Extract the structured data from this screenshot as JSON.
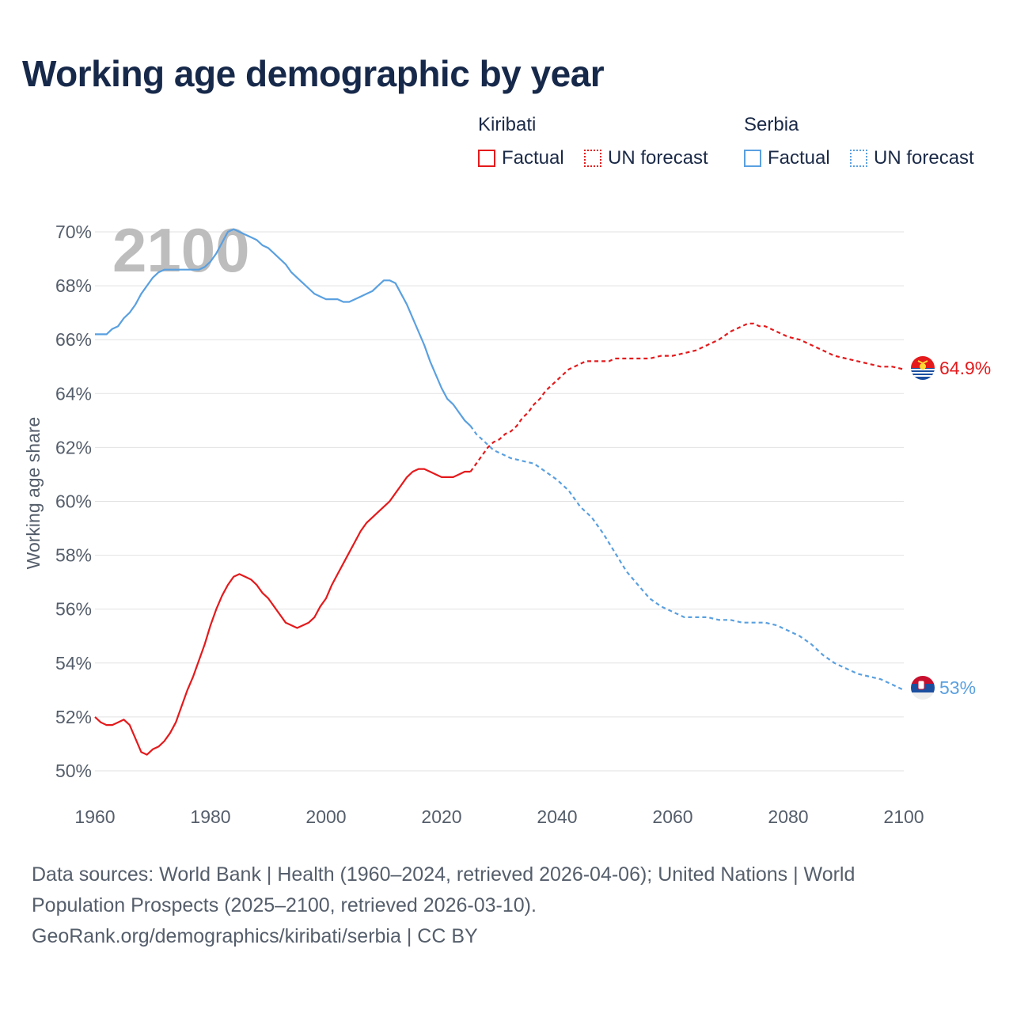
{
  "title": "Working age demographic by year",
  "legend": {
    "groups": [
      {
        "name": "Kiribati",
        "color": "#e41a1c",
        "items": [
          "Factual",
          "UN forecast"
        ]
      },
      {
        "name": "Serbia",
        "color": "#5aa0e0",
        "items": [
          "Factual",
          "UN forecast"
        ]
      }
    ]
  },
  "year_watermark": "2100",
  "footer": {
    "line1": "Data sources: World Bank | Health (1960–2024, retrieved 2026-04-06); United Nations | World",
    "line2": "Population Prospects (2025–2100, retrieved 2026-03-10).",
    "line3": "GeoRank.org/demographics/kiribati/serbia | CC BY"
  },
  "chart_data": {
    "type": "line",
    "title": "Working age demographic by year",
    "xlabel": "",
    "ylabel": "Working age share",
    "xlim": [
      1960,
      2100
    ],
    "ylim": [
      50,
      70
    ],
    "x_ticks": [
      1960,
      1980,
      2000,
      2020,
      2040,
      2060,
      2080,
      2100
    ],
    "y_ticks": [
      "50%",
      "52%",
      "54%",
      "56%",
      "58%",
      "60%",
      "62%",
      "64%",
      "66%",
      "68%",
      "70%"
    ],
    "grid": true,
    "legend": "top-right",
    "factual_end_year": 2025,
    "series": [
      {
        "name": "Kiribati",
        "color": "#e41a1c",
        "end_label": "64.9%",
        "x": [
          1960,
          1961,
          1962,
          1963,
          1964,
          1965,
          1966,
          1967,
          1968,
          1969,
          1970,
          1971,
          1972,
          1973,
          1974,
          1975,
          1976,
          1977,
          1978,
          1979,
          1980,
          1981,
          1982,
          1983,
          1984,
          1985,
          1986,
          1987,
          1988,
          1989,
          1990,
          1991,
          1992,
          1993,
          1994,
          1995,
          1996,
          1997,
          1998,
          1999,
          2000,
          2001,
          2002,
          2003,
          2004,
          2005,
          2006,
          2007,
          2008,
          2009,
          2010,
          2011,
          2012,
          2013,
          2014,
          2015,
          2016,
          2017,
          2018,
          2019,
          2020,
          2021,
          2022,
          2023,
          2024,
          2025,
          2026,
          2027,
          2028,
          2029,
          2030,
          2031,
          2032,
          2033,
          2034,
          2035,
          2036,
          2037,
          2038,
          2039,
          2040,
          2041,
          2042,
          2043,
          2044,
          2045,
          2046,
          2047,
          2048,
          2049,
          2050,
          2052,
          2054,
          2056,
          2058,
          2060,
          2062,
          2064,
          2066,
          2068,
          2070,
          2072,
          2073,
          2074,
          2075,
          2076,
          2078,
          2080,
          2082,
          2084,
          2086,
          2088,
          2090,
          2092,
          2094,
          2096,
          2098,
          2100
        ],
        "values": [
          52.0,
          51.8,
          51.7,
          51.7,
          51.8,
          51.9,
          51.7,
          51.2,
          50.7,
          50.6,
          50.8,
          50.9,
          51.1,
          51.4,
          51.8,
          52.4,
          53.0,
          53.5,
          54.1,
          54.7,
          55.4,
          56.0,
          56.5,
          56.9,
          57.2,
          57.3,
          57.2,
          57.1,
          56.9,
          56.6,
          56.4,
          56.1,
          55.8,
          55.5,
          55.4,
          55.3,
          55.4,
          55.5,
          55.7,
          56.1,
          56.4,
          56.9,
          57.3,
          57.7,
          58.1,
          58.5,
          58.9,
          59.2,
          59.4,
          59.6,
          59.8,
          60.0,
          60.3,
          60.6,
          60.9,
          61.1,
          61.2,
          61.2,
          61.1,
          61.0,
          60.9,
          60.9,
          60.9,
          61.0,
          61.1,
          61.1,
          61.4,
          61.7,
          62.0,
          62.2,
          62.3,
          62.5,
          62.6,
          62.8,
          63.1,
          63.3,
          63.6,
          63.8,
          64.1,
          64.3,
          64.5,
          64.7,
          64.9,
          65.0,
          65.1,
          65.2,
          65.2,
          65.2,
          65.2,
          65.2,
          65.3,
          65.3,
          65.3,
          65.3,
          65.4,
          65.4,
          65.5,
          65.6,
          65.8,
          66.0,
          66.3,
          66.5,
          66.6,
          66.6,
          66.5,
          66.5,
          66.3,
          66.1,
          66.0,
          65.8,
          65.6,
          65.4,
          65.3,
          65.2,
          65.1,
          65.0,
          65.0,
          64.9
        ]
      },
      {
        "name": "Serbia",
        "color": "#5aa0e0",
        "end_label": "53%",
        "x": [
          1960,
          1962,
          1963,
          1964,
          1965,
          1966,
          1967,
          1968,
          1969,
          1970,
          1971,
          1972,
          1973,
          1974,
          1975,
          1976,
          1977,
          1978,
          1979,
          1980,
          1981,
          1982,
          1983,
          1984,
          1985,
          1986,
          1987,
          1988,
          1989,
          1990,
          1991,
          1992,
          1993,
          1994,
          1995,
          1996,
          1997,
          1998,
          1999,
          2000,
          2001,
          2002,
          2003,
          2004,
          2005,
          2006,
          2007,
          2008,
          2009,
          2010,
          2011,
          2012,
          2013,
          2014,
          2015,
          2016,
          2017,
          2018,
          2019,
          2020,
          2021,
          2022,
          2023,
          2024,
          2025,
          2026,
          2027,
          2028,
          2029,
          2030,
          2032,
          2034,
          2036,
          2038,
          2040,
          2042,
          2044,
          2046,
          2048,
          2050,
          2052,
          2054,
          2056,
          2058,
          2060,
          2062,
          2064,
          2066,
          2068,
          2070,
          2072,
          2074,
          2076,
          2078,
          2080,
          2082,
          2084,
          2086,
          2088,
          2090,
          2092,
          2094,
          2096,
          2098,
          2100
        ],
        "values": [
          66.2,
          66.2,
          66.4,
          66.5,
          66.8,
          67.0,
          67.3,
          67.7,
          68.0,
          68.3,
          68.5,
          68.6,
          68.6,
          68.6,
          68.6,
          68.6,
          68.6,
          68.6,
          68.7,
          68.9,
          69.2,
          69.6,
          70.0,
          70.1,
          70.0,
          69.9,
          69.8,
          69.7,
          69.5,
          69.4,
          69.2,
          69.0,
          68.8,
          68.5,
          68.3,
          68.1,
          67.9,
          67.7,
          67.6,
          67.5,
          67.5,
          67.5,
          67.4,
          67.4,
          67.5,
          67.6,
          67.7,
          67.8,
          68.0,
          68.2,
          68.2,
          68.1,
          67.7,
          67.3,
          66.8,
          66.3,
          65.8,
          65.2,
          64.7,
          64.2,
          63.8,
          63.6,
          63.3,
          63.0,
          62.8,
          62.5,
          62.3,
          62.1,
          61.9,
          61.8,
          61.6,
          61.5,
          61.4,
          61.1,
          60.8,
          60.4,
          59.8,
          59.4,
          58.8,
          58.1,
          57.4,
          56.9,
          56.4,
          56.1,
          55.9,
          55.7,
          55.7,
          55.7,
          55.6,
          55.6,
          55.5,
          55.5,
          55.5,
          55.4,
          55.2,
          55.0,
          54.7,
          54.3,
          54.0,
          53.8,
          53.6,
          53.5,
          53.4,
          53.2,
          53.0
        ]
      }
    ]
  }
}
